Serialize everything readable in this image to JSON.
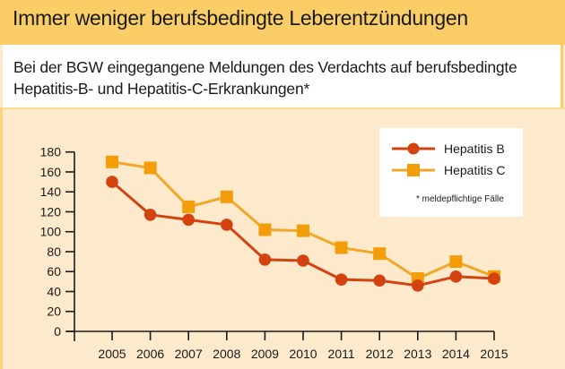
{
  "header": {
    "title": "Immer weniger berufsbedingte Leberentzündungen"
  },
  "subtitle": {
    "line1": "Bei der BGW eingegangene Meldungen des Verdachts auf berufsbedingte",
    "line2": "Hepatitis-B- und Hepatitis-C-Erkrankungen*"
  },
  "colors": {
    "header_bg": "#fbcd67",
    "chart_bg": "#fde9cc",
    "hepatitis_b": "#d4430f",
    "hepatitis_c": "#f49d0b",
    "line_c": "#f0a826"
  },
  "chart_data": {
    "type": "line",
    "title": "Immer weniger berufsbedingte Leberentzündungen",
    "subtitle": "Bei der BGW eingegangene Meldungen des Verdachts auf berufsbedingte Hepatitis-B- und Hepatitis-C-Erkrankungen*",
    "xlabel": "",
    "ylabel": "",
    "x": [
      "2005",
      "2006",
      "2007",
      "2008",
      "2009",
      "2010",
      "2011",
      "2012",
      "2013",
      "2014",
      "2015"
    ],
    "ylim": [
      0,
      180
    ],
    "yticks": [
      0,
      20,
      40,
      60,
      80,
      100,
      120,
      140,
      160,
      180
    ],
    "grid": false,
    "legend": "top-right",
    "series": [
      {
        "name": "Hepatitis B",
        "marker": "circle",
        "values": [
          150,
          117,
          112,
          107,
          72,
          71,
          52,
          51,
          46,
          55,
          53
        ]
      },
      {
        "name": "Hepatitis C",
        "marker": "square",
        "values": [
          170,
          164,
          125,
          135,
          102,
          101,
          84,
          78,
          53,
          70,
          55
        ]
      }
    ],
    "annotation": "* meldepflichtige Fälle"
  }
}
